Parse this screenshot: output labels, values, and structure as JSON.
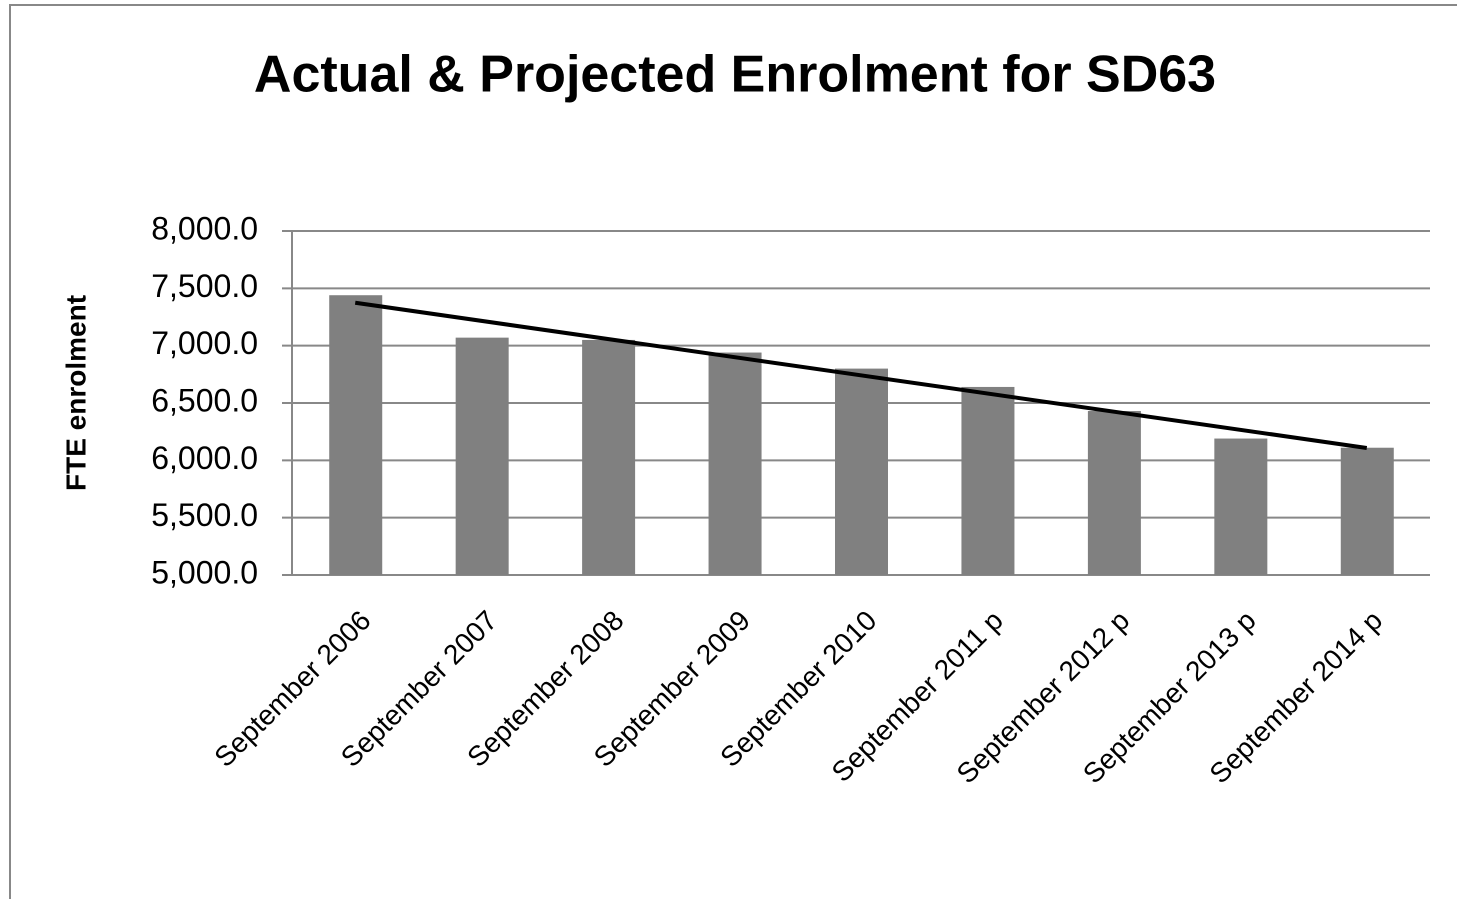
{
  "chart_data": {
    "type": "bar",
    "title": "Actual & Projected Enrolment for SD63",
    "y_label": "FTE enrolment",
    "categories": [
      "September 2006",
      "September 2007",
      "September 2008",
      "September 2009",
      "September 2010",
      "September 2011 p",
      "September 2012 p",
      "September 2013 p",
      "September 2014 p"
    ],
    "values": [
      7440,
      7070,
      7050,
      6940,
      6800,
      6640,
      6430,
      6190,
      6110
    ],
    "color": "#808080",
    "ylim": [
      5000,
      8000
    ],
    "yticks": [
      {
        "value": 5000,
        "label": "5,000.0"
      },
      {
        "value": 5500,
        "label": "5,500.0"
      },
      {
        "value": 6000,
        "label": "6,000.0"
      },
      {
        "value": 6500,
        "label": "6,500.0"
      },
      {
        "value": 7000,
        "label": "7,000.0"
      },
      {
        "value": 7500,
        "label": "7,500.0"
      },
      {
        "value": 8000,
        "label": "8,000.0"
      }
    ],
    "grid": true,
    "trendline": "linear"
  }
}
